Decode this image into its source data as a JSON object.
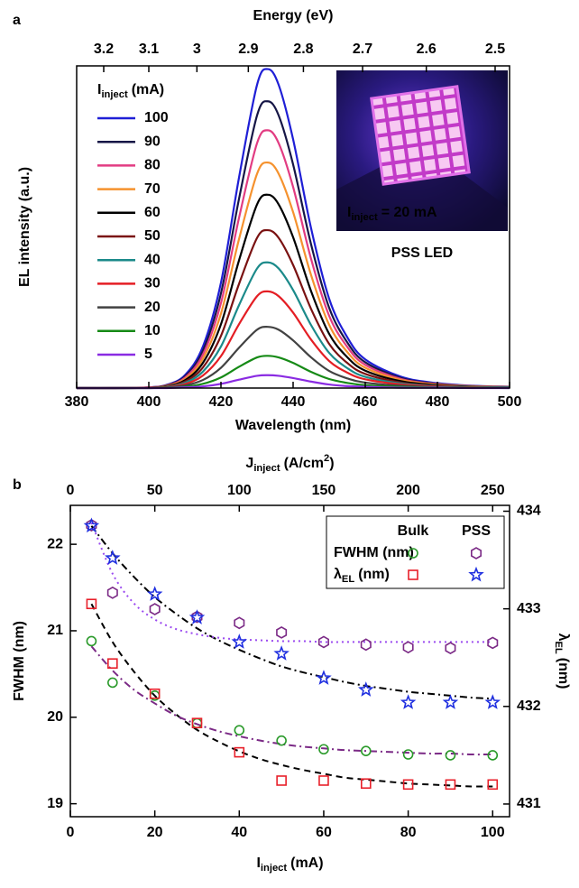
{
  "chart_data": [
    {
      "type": "line",
      "panel_label": "a",
      "xlabel": "Wavelength (nm)",
      "x2label": "Energy (eV)",
      "ylabel": "EL intensity (a.u.)",
      "x": [
        380,
        390,
        400,
        405,
        410,
        415,
        420,
        425,
        430,
        433,
        436,
        440,
        445,
        450,
        455,
        460,
        470,
        480,
        490,
        500
      ],
      "xlim": [
        380,
        500
      ],
      "xticks": [
        380,
        400,
        420,
        440,
        460,
        480,
        500
      ],
      "x2ticks": [
        3.2,
        3.1,
        3,
        2.9,
        2.8,
        2.7,
        2.6,
        2.5
      ],
      "ylim": [
        0,
        1
      ],
      "legend_title": {
        "main": "I",
        "sub": "inject",
        "unit": "(mA)"
      },
      "series": [
        {
          "name": "100",
          "color": "#1f1fd6",
          "values": [
            0,
            0,
            0.002,
            0.01,
            0.04,
            0.129,
            0.327,
            0.653,
            0.941,
            0.99,
            0.941,
            0.772,
            0.495,
            0.277,
            0.158,
            0.089,
            0.035,
            0.015,
            0.007,
            0.004
          ]
        },
        {
          "name": "90",
          "color": "#161646",
          "values": [
            0,
            0,
            0.002,
            0.009,
            0.036,
            0.116,
            0.294,
            0.587,
            0.846,
            0.89,
            0.846,
            0.694,
            0.445,
            0.249,
            0.142,
            0.08,
            0.031,
            0.013,
            0.006,
            0.004
          ]
        },
        {
          "name": "80",
          "color": "#e23c82",
          "values": [
            0,
            0,
            0.002,
            0.008,
            0.032,
            0.104,
            0.264,
            0.528,
            0.76,
            0.8,
            0.76,
            0.624,
            0.4,
            0.224,
            0.128,
            0.072,
            0.028,
            0.012,
            0.006,
            0.003
          ]
        },
        {
          "name": "70",
          "color": "#f5922e",
          "values": [
            0,
            0,
            0.001,
            0.007,
            0.028,
            0.091,
            0.231,
            0.462,
            0.665,
            0.7,
            0.665,
            0.546,
            0.35,
            0.196,
            0.112,
            0.063,
            0.025,
            0.011,
            0.005,
            0.003
          ]
        },
        {
          "name": "60",
          "color": "#000000",
          "values": [
            0,
            0,
            0.001,
            0.006,
            0.024,
            0.078,
            0.198,
            0.396,
            0.57,
            0.6,
            0.57,
            0.468,
            0.3,
            0.168,
            0.096,
            0.054,
            0.021,
            0.009,
            0.004,
            0.002
          ]
        },
        {
          "name": "50",
          "color": "#7a1212",
          "values": [
            0,
            0,
            0.001,
            0.005,
            0.02,
            0.064,
            0.162,
            0.323,
            0.466,
            0.49,
            0.466,
            0.382,
            0.245,
            0.137,
            0.078,
            0.044,
            0.017,
            0.007,
            0.003,
            0.002
          ]
        },
        {
          "name": "40",
          "color": "#1b8a8a",
          "values": [
            0,
            0,
            0.001,
            0.004,
            0.016,
            0.051,
            0.129,
            0.257,
            0.371,
            0.39,
            0.371,
            0.304,
            0.195,
            0.109,
            0.062,
            0.035,
            0.014,
            0.006,
            0.003,
            0.002
          ]
        },
        {
          "name": "30",
          "color": "#e41e24",
          "values": [
            0,
            0,
            0.001,
            0.003,
            0.012,
            0.039,
            0.099,
            0.198,
            0.285,
            0.3,
            0.285,
            0.234,
            0.15,
            0.084,
            0.048,
            0.027,
            0.011,
            0.005,
            0.002,
            0.001
          ]
        },
        {
          "name": "20",
          "color": "#424242",
          "values": [
            0,
            0,
            0,
            0.002,
            0.008,
            0.025,
            0.063,
            0.125,
            0.181,
            0.19,
            0.181,
            0.148,
            0.095,
            0.053,
            0.03,
            0.017,
            0.007,
            0.003,
            0.001,
            0.001
          ]
        },
        {
          "name": "10",
          "color": "#168a16",
          "values": [
            0,
            0,
            0,
            0.001,
            0.004,
            0.013,
            0.033,
            0.066,
            0.095,
            0.1,
            0.095,
            0.078,
            0.05,
            0.028,
            0.016,
            0.009,
            0.004,
            0.002,
            0.001,
            0
          ]
        },
        {
          "name": "5",
          "color": "#8a2be2",
          "values": [
            0,
            0,
            0,
            0,
            0.002,
            0.005,
            0.013,
            0.026,
            0.038,
            0.04,
            0.038,
            0.031,
            0.02,
            0.011,
            0.006,
            0.004,
            0.001,
            0.001,
            0,
            0
          ]
        }
      ],
      "inset": {
        "label": {
          "main": "I",
          "sub": "inject",
          "rest": "= 20 mA"
        },
        "caption": "PSS LED"
      }
    },
    {
      "type": "scatter",
      "panel_label": "b",
      "xlabel": {
        "main": "I",
        "sub": "inject",
        "rest": "(mA)"
      },
      "x2label": {
        "main": "J",
        "sub": "inject",
        "rest": "(A/cm",
        "sup": "2",
        "end": ")"
      },
      "ylabel": "FWHM (nm)",
      "y2label": {
        "main": "λ",
        "sub": "EL",
        "rest": "(nm)"
      },
      "x": [
        5,
        10,
        20,
        30,
        40,
        50,
        60,
        70,
        80,
        90,
        100
      ],
      "xlim": [
        0,
        104
      ],
      "xticks": [
        0,
        20,
        40,
        60,
        80,
        100
      ],
      "x2lim": [
        0,
        260
      ],
      "x2ticks": [
        0,
        50,
        100,
        150,
        200,
        250
      ],
      "ylim": [
        18.85,
        22.45
      ],
      "yticks": [
        19,
        20,
        21,
        22
      ],
      "y2lim": [
        430.87,
        434.06
      ],
      "y2ticks": [
        431,
        432,
        433,
        434
      ],
      "legend": {
        "columns": [
          "Bulk",
          "PSS"
        ],
        "rows": [
          "FWHM (nm)",
          {
            "main": "λ",
            "sub": "EL",
            "rest": "(nm)"
          }
        ]
      },
      "series": [
        {
          "color": "#2a9a2a",
          "marker": "circle",
          "values": [
            20.88,
            20.4,
            20.25,
            19.93,
            19.85,
            19.73,
            19.63,
            19.61,
            19.57,
            19.56,
            19.56
          ]
        },
        {
          "color": "#7b2a86",
          "marker": "hexagon",
          "values": [
            22.22,
            21.44,
            21.25,
            21.16,
            21.09,
            20.98,
            20.87,
            20.84,
            20.81,
            20.8,
            20.86
          ]
        },
        {
          "color": "#e8202a",
          "marker": "square",
          "axis": "y2",
          "values": [
            433.05,
            432.44,
            432.13,
            431.83,
            431.53,
            431.24,
            431.24,
            431.21,
            431.2,
            431.2,
            431.2
          ]
        },
        {
          "color": "#2030e0",
          "marker": "star",
          "axis": "y2",
          "values": [
            433.85,
            433.52,
            433.15,
            432.91,
            432.66,
            432.54,
            432.29,
            432.17,
            432.04,
            432.04,
            432.04
          ]
        }
      ],
      "fits": {
        "x": [
          5,
          10,
          15,
          20,
          25,
          30,
          35,
          40,
          45,
          50,
          55,
          60,
          65,
          70,
          75,
          80,
          85,
          90,
          95,
          100
        ],
        "lines": [
          {
            "color": "#000000",
            "dash": "dashed",
            "axis": "y2",
            "values": [
              433.05,
              432.66,
              432.36,
              432.11,
              431.92,
              431.76,
              431.64,
              431.54,
              431.46,
              431.4,
              431.35,
              431.31,
              431.27,
              431.25,
              431.23,
              431.21,
              431.2,
              431.19,
              431.18,
              431.18
            ]
          },
          {
            "color": "#7b2a86",
            "dash": "dashdot",
            "values": [
              20.82,
              20.54,
              20.32,
              20.16,
              20.02,
              19.92,
              19.84,
              19.78,
              19.73,
              19.69,
              19.66,
              19.64,
              19.62,
              19.61,
              19.6,
              19.59,
              19.58,
              19.58,
              19.57,
              19.57
            ]
          },
          {
            "color": "#000000",
            "dash": "dashdot",
            "axis": "y2",
            "values": [
              433.85,
              433.57,
              433.33,
              433.12,
              432.95,
              432.8,
              432.68,
              432.58,
              432.49,
              432.41,
              432.35,
              432.3,
              432.25,
              432.21,
              432.18,
              432.15,
              432.13,
              432.11,
              432.09,
              432.08
            ]
          },
          {
            "color": "#9b4af0",
            "dash": "dotted",
            "values": [
              22.25,
              21.66,
              21.32,
              21.13,
              21.02,
              20.96,
              20.92,
              20.9,
              20.89,
              20.88,
              20.88,
              20.87,
              20.87,
              20.87,
              20.87,
              20.87,
              20.87,
              20.87,
              20.87,
              20.87
            ]
          }
        ]
      }
    }
  ]
}
